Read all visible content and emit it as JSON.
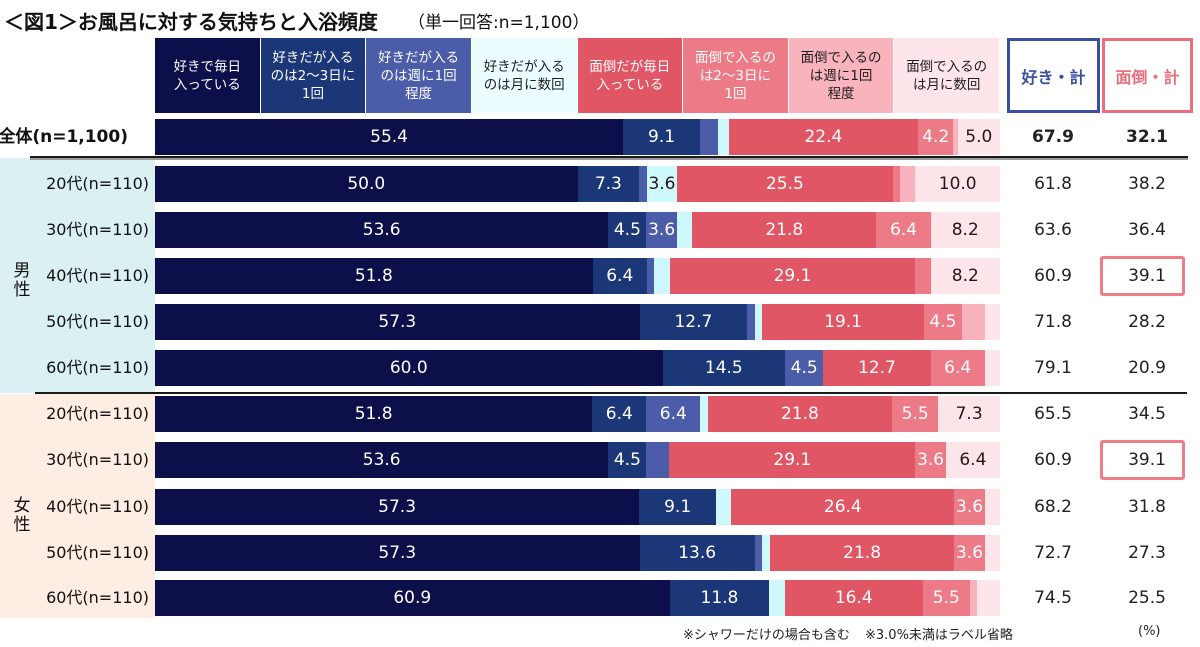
{
  "title": {
    "main": "＜図1＞お風呂に対する気持ちと入浴頻度",
    "sub": "（単一回答:n=1,100）"
  },
  "notes": [
    "※シャワーだけの場合も含む",
    "※3.0%未満はラベル省略"
  ],
  "unit": "(%)",
  "chart_data": {
    "type": "bar",
    "orientation": "horizontal-stacked-100",
    "title": "＜図1＞お風呂に対する気持ちと入浴頻度（単一回答:n=1,100）",
    "xlabel": "",
    "ylabel": "",
    "xlim": [
      0,
      100
    ],
    "unit": "%",
    "grid": false,
    "legend_position": "top",
    "label_threshold": 3.0,
    "categories": [
      "全体(n=1,100)",
      "20代(n=110)",
      "30代(n=110)",
      "40代(n=110)",
      "50代(n=110)",
      "60代(n=110)",
      "20代(n=110)",
      "30代(n=110)",
      "40代(n=110)",
      "50代(n=110)",
      "60代(n=110)"
    ],
    "groups": [
      {
        "label": "男性",
        "start": 1,
        "end": 5
      },
      {
        "label": "女性",
        "start": 6,
        "end": 10
      }
    ],
    "series": [
      {
        "name": "好きで毎日\n入っている",
        "color": "#0c0f4a",
        "values": [
          55.4,
          50.0,
          53.6,
          51.8,
          57.3,
          60.0,
          51.8,
          53.6,
          57.3,
          57.3,
          60.9
        ]
      },
      {
        "name": "好きだが入る\nのは2～3日に\n1回",
        "color": "#1b3777",
        "values": [
          9.1,
          7.3,
          4.5,
          6.4,
          12.7,
          14.5,
          6.4,
          4.5,
          9.1,
          13.6,
          11.8
        ]
      },
      {
        "name": "好きだが入る\nのは週に1回\n程度",
        "color": "#4b5ca8",
        "values": [
          2.1,
          0.9,
          3.6,
          0.9,
          0.9,
          4.5,
          6.4,
          2.7,
          0.0,
          0.9,
          0.0
        ]
      },
      {
        "name": "好きだが入る\nのは月に数回",
        "color": "#cdf8fc",
        "values": [
          1.3,
          3.6,
          1.8,
          1.8,
          0.9,
          0.0,
          0.9,
          0.0,
          1.8,
          0.9,
          1.8
        ]
      },
      {
        "name": "面倒だが毎日\n入っている",
        "color": "#e05665",
        "values": [
          22.4,
          25.5,
          21.8,
          29.1,
          19.1,
          12.7,
          21.8,
          29.1,
          26.4,
          21.8,
          16.4
        ]
      },
      {
        "name": "面倒で入るの\nは2～3日に\n1回",
        "color": "#ec7b87",
        "values": [
          4.2,
          0.9,
          6.4,
          1.8,
          4.5,
          6.4,
          5.5,
          3.6,
          3.6,
          3.6,
          5.5
        ]
      },
      {
        "name": "面倒で入るの\nは週に1回\n程度",
        "color": "#f9b3bc",
        "values": [
          0.5,
          1.8,
          0.0,
          0.0,
          2.7,
          0.0,
          0.0,
          0.0,
          0.0,
          0.0,
          0.9
        ]
      },
      {
        "name": "面倒で入るの\nは月に数回",
        "color": "#fde5e9",
        "values": [
          5.0,
          10.0,
          8.2,
          8.2,
          1.8,
          1.8,
          7.3,
          6.4,
          1.8,
          1.8,
          2.7
        ]
      }
    ],
    "legend_header_colors": [
      "#0c0f4a",
      "#1b3777",
      "#4b5ca8",
      "#ebfdff",
      "#e05665",
      "#ec7b87",
      "#f9b3bc",
      "#fde5e9"
    ],
    "totals": [
      {
        "name": "好き・計",
        "color": "#3b4fa0",
        "values": [
          67.9,
          61.8,
          63.6,
          60.9,
          71.8,
          79.1,
          65.5,
          60.9,
          68.2,
          72.7,
          74.5
        ]
      },
      {
        "name": "面倒・計",
        "color": "#ea6f7e",
        "values": [
          32.1,
          38.2,
          36.4,
          39.1,
          28.2,
          20.9,
          34.5,
          39.1,
          31.8,
          27.3,
          25.5
        ]
      }
    ],
    "highlighted": [
      {
        "total": 1,
        "row": 3
      },
      {
        "total": 1,
        "row": 7
      }
    ],
    "highlight_color": "#ee7d89"
  }
}
